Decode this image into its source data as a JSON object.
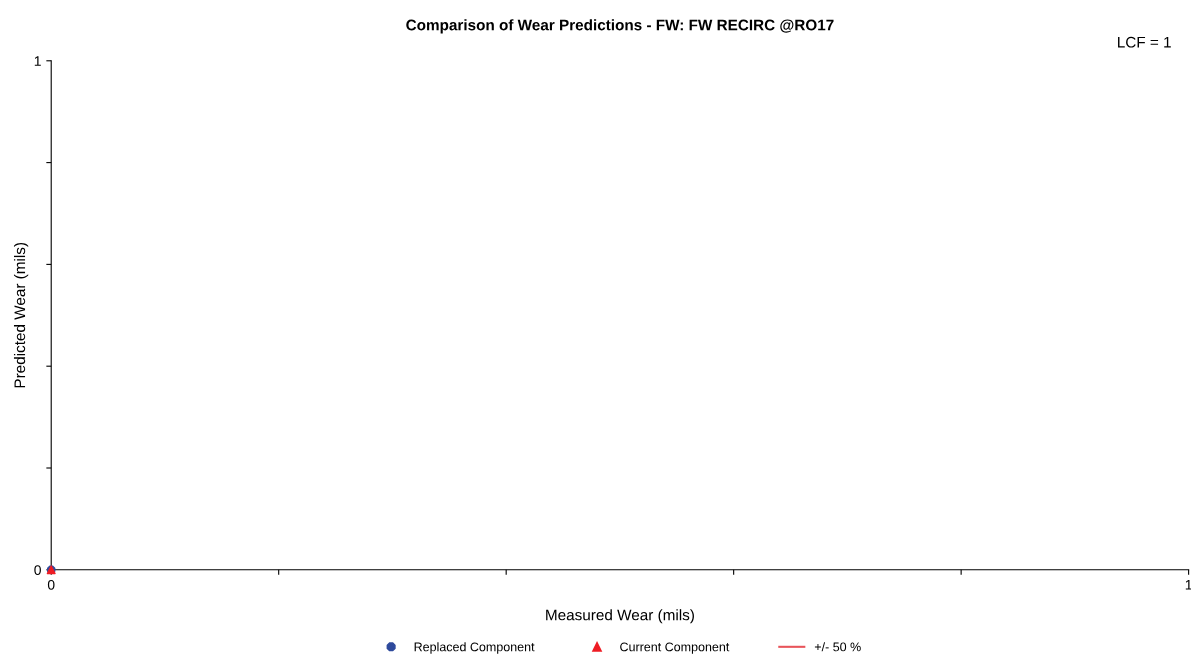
{
  "chart_data": {
    "type": "scatter",
    "title": "Comparison of Wear Predictions - FW: FW RECIRC @RO17",
    "xlabel": "Measured Wear (mils)",
    "ylabel": "Predicted Wear (mils)",
    "annotations": [
      "LCF = 1"
    ],
    "xlim": [
      0,
      1
    ],
    "ylim": [
      0,
      1
    ],
    "xticks": [
      0,
      {
        "value": 0.2,
        "label": null
      },
      {
        "value": 0.4,
        "label": null
      },
      {
        "value": 0.6,
        "label": null
      },
      {
        "value": 0.8,
        "label": null
      },
      1
    ],
    "yticks": [
      0,
      {
        "value": 0.2,
        "label": null
      },
      {
        "value": 0.4,
        "label": null
      },
      {
        "value": 0.6,
        "label": null
      },
      {
        "value": 0.8,
        "label": null
      },
      1
    ],
    "grid": false,
    "legend": "bottom",
    "series": [
      {
        "name": "Replaced Component",
        "marker": "circle",
        "color": "#2e4a9c",
        "x": [
          0
        ],
        "values": [
          0
        ]
      },
      {
        "name": "Current Component",
        "marker": "triangle",
        "color": "#ee1c24",
        "x": [
          0
        ],
        "values": [
          0
        ]
      },
      {
        "name": "+/- 50 %",
        "type": "line",
        "line_style": "solid",
        "color": "#e8545a"
      }
    ]
  }
}
